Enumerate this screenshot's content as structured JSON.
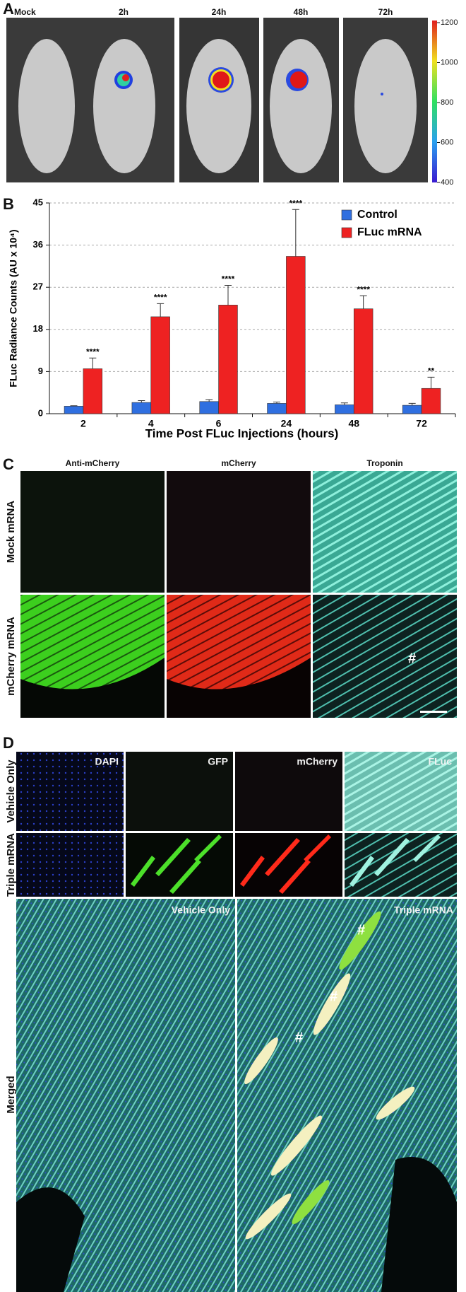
{
  "panel_labels": [
    "A",
    "B",
    "C",
    "D"
  ],
  "panel_a": {
    "labels": [
      "Mock",
      "2h",
      "24h",
      "48h",
      "72h"
    ],
    "colorbar": {
      "lim": [
        400,
        1200
      ],
      "ticks": [
        1200,
        1000,
        800,
        600,
        400
      ]
    }
  },
  "chart_data": {
    "type": "bar",
    "y_label": "FLuc Radiance Counts (AU x 10⁴)",
    "x_label": "Time Post FLuc Injections (hours)",
    "categories": [
      "2",
      "4",
      "6",
      "24",
      "48",
      "72"
    ],
    "series": [
      {
        "name": "Control",
        "color": "#2f6fe0",
        "values": [
          1.6,
          2.4,
          2.6,
          2.2,
          1.9,
          1.8
        ],
        "errors": [
          0.1,
          0.4,
          0.4,
          0.3,
          0.4,
          0.4
        ]
      },
      {
        "name": "FLuc mRNA",
        "color": "#ee2222",
        "values": [
          9.6,
          20.7,
          23.2,
          33.6,
          22.4,
          5.4
        ],
        "errors": [
          2.3,
          2.8,
          4.2,
          10.0,
          2.8,
          2.4
        ],
        "annotations": [
          "****",
          "****",
          "****",
          "****",
          "****",
          "**"
        ]
      }
    ],
    "ylim": [
      0,
      45
    ],
    "yticks": [
      0,
      9,
      18,
      27,
      36,
      45
    ],
    "grid": true,
    "legend": "upper right"
  },
  "panel_c": {
    "columns": [
      "Anti-mCherry",
      "mCherry",
      "Troponin"
    ],
    "rows": [
      "Mock mRNA",
      "mCherry mRNA"
    ],
    "marker": "#"
  },
  "panel_d": {
    "columns": [
      "DAPI",
      "GFP",
      "mCherry",
      "FLuc"
    ],
    "rows": [
      "Vehicle Only",
      "Triple mRNA",
      "Merged"
    ],
    "merged_labels": [
      "Vehicle Only",
      "Triple mRNA"
    ],
    "markers": [
      "#",
      "#",
      "#"
    ]
  }
}
